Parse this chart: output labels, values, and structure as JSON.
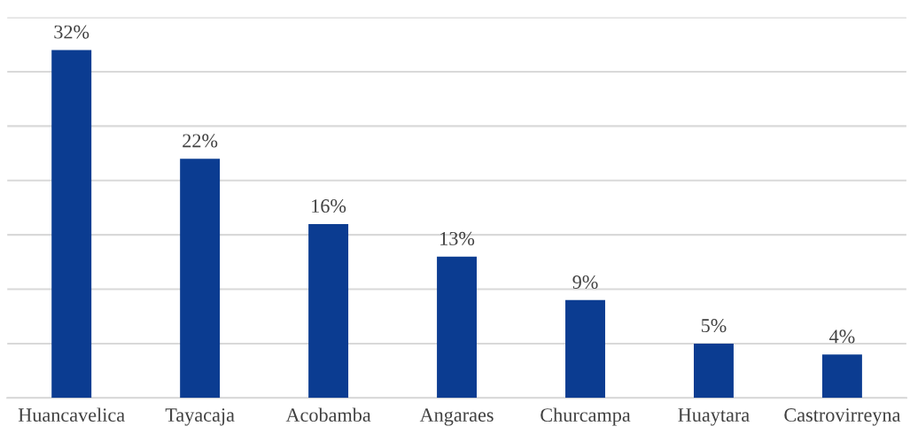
{
  "chart_data": {
    "type": "bar",
    "categories": [
      "Huancavelica",
      "Tayacaja",
      "Acobamba",
      "Angaraes",
      "Churcampa",
      "Huaytara",
      "Castrovirreyna"
    ],
    "values": [
      32,
      22,
      16,
      13,
      9,
      5,
      4
    ],
    "value_labels": [
      "32%",
      "22%",
      "16%",
      "13%",
      "9%",
      "5%",
      "4%"
    ],
    "color": "#0b3c91",
    "ylim": [
      0,
      35
    ],
    "yticks": [
      {
        "value": 0,
        "label": null
      },
      {
        "value": 5,
        "label": null
      },
      {
        "value": 10,
        "label": null
      },
      {
        "value": 15,
        "label": null
      },
      {
        "value": 20,
        "label": null
      },
      {
        "value": 25,
        "label": null
      },
      {
        "value": 30,
        "label": null
      },
      {
        "value": 35,
        "label": null
      }
    ],
    "grid": "y",
    "tick_labels": "x",
    "legend": false
  }
}
